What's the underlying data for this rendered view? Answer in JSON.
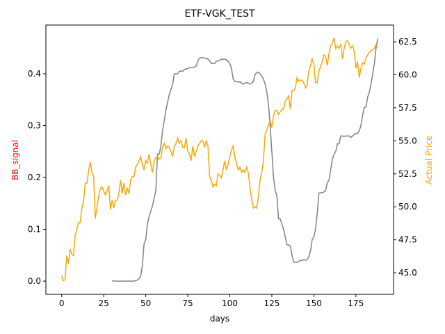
{
  "chart_data": {
    "type": "line",
    "title": "ETF-VGK_TEST",
    "xlabel": "days",
    "ylabel": "BB_signal",
    "ylabel_color": "#ff0000",
    "y2label": "Actual Price",
    "y2label_color": "#ffa500",
    "x": [
      0,
      1,
      2,
      3,
      4,
      5,
      6,
      7,
      8,
      9,
      10,
      11,
      12,
      13,
      14,
      15,
      16,
      17,
      18,
      19,
      20,
      21,
      22,
      23,
      24,
      25,
      26,
      27,
      28,
      29,
      30,
      31,
      32,
      33,
      34,
      35,
      36,
      37,
      38,
      39,
      40,
      41,
      42,
      43,
      44,
      45,
      46,
      47,
      48,
      49,
      50,
      51,
      52,
      53,
      54,
      55,
      56,
      57,
      58,
      59,
      60,
      61,
      62,
      63,
      64,
      65,
      66,
      67,
      68,
      69,
      70,
      71,
      72,
      73,
      74,
      75,
      76,
      77,
      78,
      79,
      80,
      81,
      82,
      83,
      84,
      85,
      86,
      87,
      88,
      89,
      90,
      91,
      92,
      93,
      94,
      95,
      96,
      97,
      98,
      99,
      100,
      101,
      102,
      103,
      104,
      105,
      106,
      107,
      108,
      109,
      110,
      111,
      112,
      113,
      114,
      115,
      116,
      117,
      118,
      119,
      120,
      121,
      122,
      123,
      124,
      125,
      126,
      127,
      128,
      129,
      130,
      131,
      132,
      133,
      134,
      135,
      136,
      137,
      138,
      139,
      140,
      141,
      142,
      143,
      144,
      145,
      146,
      147,
      148,
      149,
      150,
      151,
      152,
      153,
      154,
      155,
      156,
      157,
      158,
      159,
      160,
      161,
      162,
      163,
      164,
      165,
      166,
      167,
      168,
      169,
      170,
      171,
      172,
      173,
      174,
      175,
      176,
      177,
      178,
      179,
      180,
      181,
      182,
      183,
      184,
      185,
      186,
      187,
      188
    ],
    "series": [
      {
        "color": "#808080",
        "axis": "y",
        "values": [
          null,
          null,
          null,
          null,
          null,
          null,
          null,
          null,
          null,
          null,
          null,
          null,
          null,
          null,
          null,
          null,
          null,
          null,
          null,
          null,
          null,
          null,
          null,
          null,
          null,
          null,
          null,
          null,
          null,
          null,
          0.001,
          0.0,
          0.0,
          0.0,
          0.0,
          0.0,
          0.0,
          0.0,
          0.0,
          0.0,
          0.0,
          0.0,
          0.0,
          0.0,
          0.001,
          0.002,
          0.005,
          0.01,
          0.03,
          0.072,
          0.08,
          0.11,
          0.125,
          0.135,
          0.145,
          0.16,
          0.175,
          0.245,
          0.245,
          0.26,
          0.29,
          0.31,
          0.33,
          0.345,
          0.36,
          0.37,
          0.38,
          0.4,
          0.4,
          0.4,
          0.405,
          0.405,
          0.405,
          0.408,
          0.41,
          0.41,
          0.412,
          0.412,
          0.412,
          0.413,
          0.415,
          0.425,
          0.43,
          0.431,
          0.431,
          0.43,
          0.43,
          0.428,
          0.425,
          0.42,
          0.42,
          0.42,
          0.424,
          0.425,
          0.426,
          0.428,
          0.428,
          0.428,
          0.427,
          0.424,
          0.42,
          0.41,
          0.39,
          0.385,
          0.385,
          0.384,
          0.385,
          0.382,
          0.38,
          0.382,
          0.383,
          0.382,
          0.38,
          0.382,
          0.385,
          0.398,
          0.402,
          0.403,
          0.4,
          0.395,
          0.39,
          0.38,
          0.365,
          0.34,
          0.3,
          0.25,
          0.2,
          0.175,
          0.165,
          0.12,
          0.12,
          0.11,
          0.1,
          0.085,
          0.07,
          0.07,
          0.068,
          0.05,
          0.036,
          0.037,
          0.036,
          0.038,
          0.04,
          0.04,
          0.041,
          0.04,
          0.042,
          0.047,
          0.058,
          0.08,
          0.085,
          0.1,
          0.13,
          0.17,
          0.17,
          0.171,
          0.172,
          0.175,
          0.19,
          0.195,
          0.215,
          0.235,
          0.245,
          0.25,
          0.265,
          0.265,
          0.28,
          0.28,
          0.279,
          0.28,
          0.28,
          0.28,
          0.277,
          0.28,
          0.283,
          0.285,
          0.285,
          0.29,
          0.3,
          0.32,
          0.335,
          0.336,
          0.355,
          0.365,
          0.38,
          0.4,
          0.42,
          0.45,
          0.468
        ]
      },
      {
        "color": "#ffa500",
        "axis": "y2",
        "values": [
          44.8,
          44.4,
          44.5,
          46.3,
          45.7,
          46.8,
          46.4,
          46.3,
          47.8,
          48.3,
          48.8,
          48.8,
          49.9,
          50.4,
          51.8,
          51.8,
          52.7,
          53.4,
          52.6,
          52.3,
          49.1,
          50.0,
          50.8,
          51.4,
          51.5,
          51.2,
          50.9,
          51.2,
          51.6,
          49.8,
          50.5,
          49.9,
          50.5,
          50.5,
          51.0,
          52.0,
          51.0,
          51.8,
          50.9,
          51.4,
          51.0,
          52.0,
          52.3,
          52.3,
          53.0,
          53.2,
          53.5,
          53.8,
          53.2,
          52.8,
          53.5,
          53.3,
          54.0,
          53.2,
          52.6,
          53.5,
          53.7,
          53.8,
          53.6,
          53.7,
          54.5,
          54.8,
          54.4,
          54.6,
          54.5,
          54.2,
          53.8,
          54.6,
          54.8,
          55.2,
          54.8,
          55.0,
          54.5,
          54.5,
          55.2,
          54.2,
          54.0,
          53.5,
          54.6,
          53.8,
          54.2,
          54.6,
          54.8,
          55.0,
          55.0,
          54.5,
          55.0,
          54.6,
          52.3,
          52.0,
          51.5,
          51.7,
          51.6,
          52.5,
          52.4,
          52.2,
          52.8,
          53.5,
          52.8,
          53.2,
          53.8,
          54.3,
          54.6,
          53.8,
          53.3,
          52.8,
          53.0,
          52.6,
          52.8,
          52.6,
          53.0,
          52.6,
          51.5,
          50.6,
          49.9,
          50.0,
          49.9,
          50.8,
          52.0,
          52.6,
          53.5,
          55.5,
          55.8,
          56.2,
          56.5,
          56.0,
          56.9,
          57.3,
          57.3,
          57.0,
          57.2,
          57.4,
          57.4,
          58.0,
          58.2,
          58.4,
          57.4,
          58.8,
          58.8,
          59.0,
          59.8,
          59.5,
          59.6,
          59.6,
          59.4,
          59.0,
          59.2,
          60.3,
          60.7,
          61.2,
          60.8,
          59.4,
          59.4,
          60.3,
          60.6,
          61.0,
          61.5,
          61.4,
          60.7,
          61.6,
          62.2,
          62.4,
          62.8,
          62.0,
          62.2,
          62.0,
          62.3,
          61.2,
          62.0,
          62.5,
          62.6,
          62.3,
          62.0,
          62.2,
          61.8,
          60.5,
          61.0,
          59.8,
          60.5,
          60.9,
          60.8,
          61.3,
          61.5,
          61.7,
          61.8,
          61.9,
          62.0,
          62.3,
          62.1
        ]
      }
    ],
    "xlim": [
      -9.4,
      197.4
    ],
    "xticks": [
      0,
      25,
      50,
      75,
      100,
      125,
      150,
      175
    ],
    "ylim": [
      -0.0255,
      0.494
    ],
    "yticks": [
      {
        "value": 0,
        "label": "0.0"
      },
      0.1,
      0.2,
      0.3,
      0.4
    ],
    "y2lim": [
      43.37,
      63.77
    ],
    "y2ticks": [
      {
        "value": 45,
        "label": "45.0"
      },
      47.5,
      {
        "value": 50,
        "label": "50.0"
      },
      52.5,
      {
        "value": 55,
        "label": "55.0"
      },
      57.5,
      {
        "value": 60,
        "label": "60.0"
      },
      62.5
    ],
    "grid": false
  }
}
